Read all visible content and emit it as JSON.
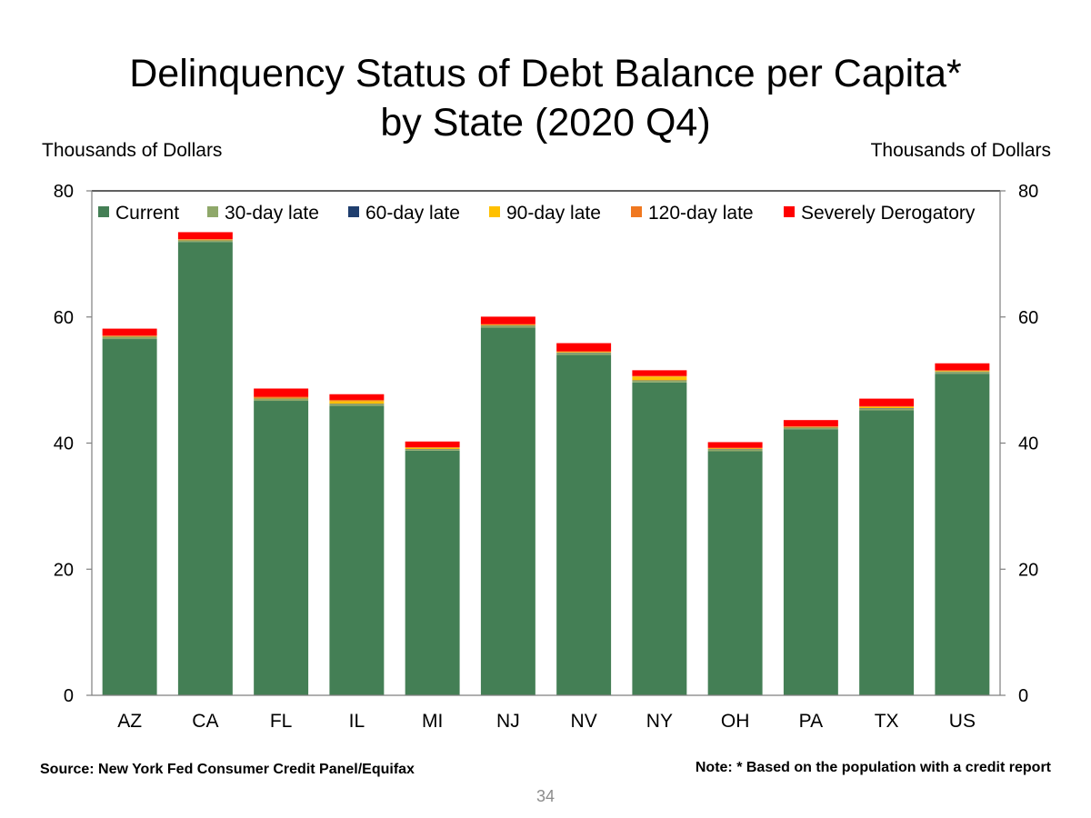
{
  "slide": {
    "title_line1": "Delinquency Status of Debt Balance per Capita*",
    "title_line2": "by State (2020 Q4)",
    "left_axis_unit": "Thousands of Dollars",
    "right_axis_unit": "Thousands of Dollars",
    "source": "Source: New York Fed Consumer Credit Panel/Equifax",
    "note": "Note: * Based on the population with a credit report",
    "page_number": "34"
  },
  "chart_data": {
    "type": "bar",
    "stacked": true,
    "categories": [
      "AZ",
      "CA",
      "FL",
      "IL",
      "MI",
      "NJ",
      "NV",
      "NY",
      "OH",
      "PA",
      "TX",
      "US"
    ],
    "ylim": [
      0,
      80
    ],
    "yticks": [
      0,
      20,
      40,
      60,
      80
    ],
    "y2ticks": [
      0,
      20,
      40,
      60,
      80
    ],
    "legend_position": "top",
    "grid": false,
    "series": [
      {
        "name": "Current",
        "color": "#447f55",
        "values": [
          56.5,
          71.9,
          46.7,
          45.9,
          38.8,
          58.3,
          54.0,
          49.6,
          38.7,
          42.2,
          45.2,
          51.0
        ]
      },
      {
        "name": "30-day late",
        "color": "#8fa86a",
        "values": [
          0.3,
          0.2,
          0.3,
          0.3,
          0.2,
          0.3,
          0.3,
          0.3,
          0.3,
          0.2,
          0.3,
          0.3
        ]
      },
      {
        "name": "60-day late",
        "color": "#1f3e6e",
        "values": [
          0.05,
          0.05,
          0.05,
          0.05,
          0.05,
          0.05,
          0.05,
          0.05,
          0.05,
          0.05,
          0.05,
          0.05
        ]
      },
      {
        "name": "90-day late",
        "color": "#ffc000",
        "values": [
          0.1,
          0.1,
          0.1,
          0.4,
          0.2,
          0.1,
          0.1,
          0.6,
          0.1,
          0.1,
          0.2,
          0.1
        ]
      },
      {
        "name": "120-day late",
        "color": "#f07820",
        "values": [
          0.1,
          0.1,
          0.2,
          0.2,
          0.1,
          0.1,
          0.1,
          0.1,
          0.1,
          0.1,
          0.1,
          0.1
        ]
      },
      {
        "name": "Severely Derogatory",
        "color": "#ff0000",
        "values": [
          1.1,
          1.1,
          1.3,
          0.9,
          0.9,
          1.2,
          1.3,
          0.9,
          0.9,
          1.0,
          1.2,
          1.1
        ]
      }
    ]
  }
}
